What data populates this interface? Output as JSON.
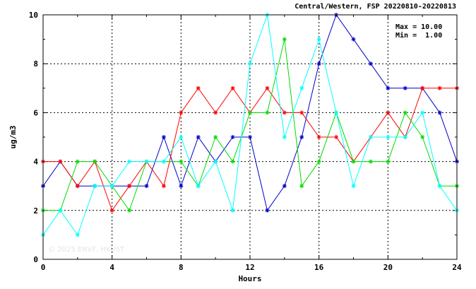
{
  "chart_data": {
    "type": "line",
    "title": "Central/Western, FSP 20220810-20220813",
    "xlabel": "Hours",
    "ylabel": "ug/m3",
    "xlim": [
      0,
      24
    ],
    "ylim": [
      0,
      10
    ],
    "xticks": [
      0,
      4,
      8,
      12,
      16,
      20,
      24
    ],
    "yticks": [
      0,
      2,
      4,
      6,
      8,
      10
    ],
    "grid": true,
    "annotations": {
      "max": "Max = 10.00",
      "min": "Min =  1.00"
    },
    "watermark": "© 2025  ENVF, HKUST",
    "x": [
      0,
      1,
      2,
      3,
      4,
      5,
      6,
      7,
      8,
      9,
      10,
      11,
      12,
      13,
      14,
      15,
      16,
      17,
      18,
      19,
      20,
      21,
      22,
      23,
      24
    ],
    "series": [
      {
        "color": "#0000cc",
        "values": [
          3,
          4,
          3,
          3,
          3,
          3,
          3,
          5,
          3,
          5,
          4,
          5,
          5,
          2,
          3,
          5,
          8,
          10,
          9,
          8,
          7,
          7,
          7,
          6,
          4
        ]
      },
      {
        "color": "#ff0000",
        "values": [
          4,
          4,
          3,
          4,
          2,
          3,
          4,
          3,
          6,
          7,
          6,
          7,
          6,
          7,
          6,
          6,
          5,
          5,
          4,
          5,
          6,
          5,
          7,
          7,
          7
        ]
      },
      {
        "color": "#00dd00",
        "values": [
          2,
          2,
          4,
          4,
          3,
          2,
          4,
          4,
          4,
          3,
          5,
          4,
          6,
          6,
          9,
          3,
          4,
          6,
          4,
          4,
          4,
          6,
          5,
          3,
          3
        ]
      },
      {
        "color": "#00ffff",
        "values": [
          1,
          2,
          1,
          3,
          3,
          4,
          4,
          4,
          5,
          3,
          4,
          2,
          8,
          10,
          5,
          7,
          9,
          6,
          3,
          5,
          5,
          5,
          6,
          3,
          2
        ]
      }
    ]
  }
}
